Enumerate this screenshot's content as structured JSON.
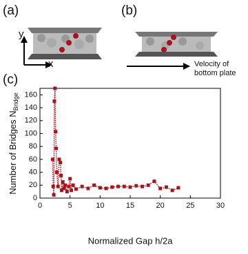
{
  "panel_labels": [
    "(a)",
    "(b)",
    "(c)"
  ],
  "axis_arrows": [
    "y",
    "x"
  ],
  "arrow_label": [
    "Velocity of",
    "bottom plate"
  ],
  "chart_data": {
    "type": "line",
    "x_label": "Normalized Gap h/2a",
    "y_label": "Number of Bridges N",
    "y_label_subscript": "Bridge",
    "xlim": [
      0,
      30
    ],
    "xticks": [
      0,
      5,
      10,
      15,
      20,
      25,
      30
    ],
    "ylim": [
      0,
      170
    ],
    "yticks": [
      0,
      20,
      40,
      60,
      80,
      100,
      120,
      140,
      160
    ],
    "series": [
      {
        "color": "#a8141c",
        "x": [
          2.1,
          2.2,
          2.3,
          2.4,
          2.5,
          2.6,
          2.7,
          2.8,
          3.0,
          3.2,
          3.4,
          3.5,
          3.6,
          3.8,
          4.0,
          4.2,
          4.5,
          4.8,
          5.0,
          5.2,
          5.5,
          6,
          7,
          8,
          9,
          10,
          11,
          12,
          13,
          14,
          15,
          16,
          17,
          18,
          19,
          20,
          21,
          22,
          23
        ],
        "values": [
          60,
          18,
          5,
          150,
          170,
          103,
          77,
          40,
          18,
          60,
          55,
          35,
          12,
          25,
          15,
          20,
          10,
          18,
          30,
          12,
          20,
          14,
          18,
          15,
          20,
          16,
          15,
          17,
          18,
          18,
          17,
          19,
          18,
          20,
          26,
          15,
          17,
          12,
          16
        ]
      }
    ]
  }
}
